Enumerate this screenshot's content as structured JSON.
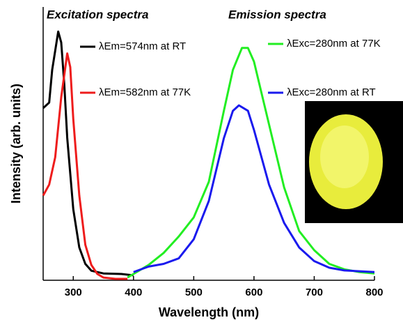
{
  "chart_data": {
    "type": "line",
    "x_label": "Wavelength (nm)",
    "y_label": "Intensity (arb. units)",
    "annotations": [
      "Excitation spectra",
      "Emission spectra"
    ],
    "xlim": [
      250,
      800
    ],
    "xticks": [
      300,
      400,
      500,
      600,
      700,
      800
    ],
    "ylim": [
      0,
      100
    ],
    "series": [
      {
        "name": "λEm=574nm at RT",
        "color": "#000000",
        "x": [
          250,
          255,
          260,
          265,
          270,
          275,
          280,
          285,
          290,
          300,
          310,
          320,
          330,
          350,
          380,
          400
        ],
        "values": [
          63,
          64,
          65,
          77,
          84,
          91,
          87,
          72,
          52,
          26,
          12,
          6,
          3.5,
          2.5,
          2.3,
          1.8
        ]
      },
      {
        "name": "λEm=582nm at 77K",
        "color": "#ee1c1c",
        "x": [
          250,
          260,
          270,
          280,
          290,
          295,
          300,
          310,
          320,
          330,
          340,
          350,
          370,
          390
        ],
        "values": [
          31,
          35,
          45,
          67,
          83,
          78,
          59,
          31,
          13,
          5.6,
          2.3,
          1,
          0.5,
          0.5
        ]
      },
      {
        "name": "λExc=280nm at 77K",
        "color": "#22ee22",
        "x": [
          390,
          400,
          425,
          450,
          475,
          500,
          525,
          550,
          565,
          580,
          590,
          600,
          625,
          650,
          675,
          700,
          725,
          750,
          775,
          800
        ],
        "values": [
          1,
          2.3,
          5.6,
          10,
          16,
          23,
          36,
          62,
          77,
          85,
          85,
          80,
          57,
          34,
          18,
          11,
          6,
          4,
          3,
          2.5
        ]
      },
      {
        "name": "λExc=280nm at RT",
        "color": "#1a1aee",
        "x": [
          400,
          425,
          450,
          475,
          500,
          525,
          550,
          565,
          575,
          590,
          600,
          625,
          650,
          675,
          700,
          725,
          750,
          800
        ],
        "values": [
          3,
          5,
          6,
          8,
          15,
          29,
          52,
          62,
          64,
          62,
          55,
          35,
          21,
          12,
          7,
          4.6,
          3.6,
          3
        ]
      }
    ]
  }
}
